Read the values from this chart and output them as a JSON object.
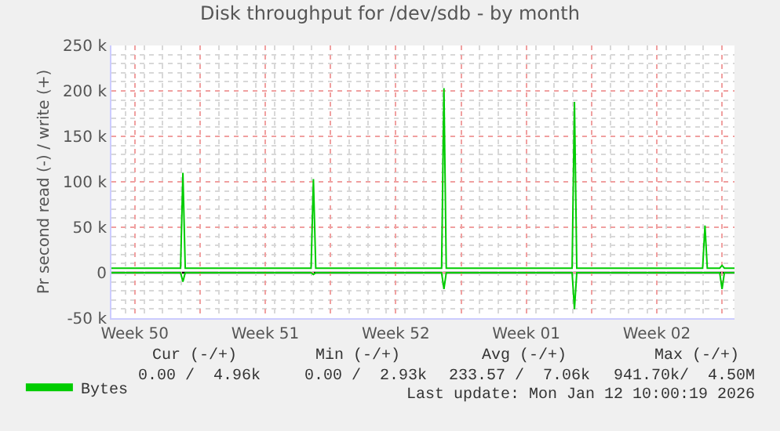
{
  "chart_data": {
    "type": "line",
    "title": "Disk throughput for /dev/sdb - by month",
    "ylabel": "Pr second read (-) / write (+)",
    "xlim": [
      "2025-12-10T06:00",
      "2026-01-12T16:00"
    ],
    "ylim": [
      -50000,
      250000
    ],
    "xticks": [
      {
        "value": "2025-12-11T12:00",
        "label": "Week 50"
      },
      {
        "value": "2025-12-18T12:00",
        "label": "Week 51"
      },
      {
        "value": "2025-12-25T12:00",
        "label": "Week 52"
      },
      {
        "value": "2026-01-01T12:00",
        "label": "Week 01"
      },
      {
        "value": "2026-01-08T12:00",
        "label": "Week 02"
      },
      {
        "value": "2025-12-15",
        "label": null
      },
      {
        "value": "2025-12-22",
        "label": null
      },
      {
        "value": "2025-12-29",
        "label": null
      },
      {
        "value": "2026-01-05",
        "label": null
      },
      {
        "value": "2026-01-12",
        "label": null
      }
    ],
    "yticks": [
      {
        "value": -50000,
        "label": "-50 k"
      },
      {
        "value": 0,
        "label": "0"
      },
      {
        "value": 50000,
        "label": "50 k"
      },
      {
        "value": 100000,
        "label": "100 k"
      },
      {
        "value": 150000,
        "label": "150 k"
      },
      {
        "value": 200000,
        "label": "200 k"
      },
      {
        "value": 250000,
        "label": "250 k"
      }
    ],
    "grid": true,
    "legend": "bottom left",
    "series": [
      {
        "name": "Bytes",
        "color": "#00cc00",
        "x": [
          "2025-12-10T06:00",
          "2025-12-13T23:00",
          "2025-12-14T02:00",
          "2025-12-14T05:00",
          "2025-12-20T23:00",
          "2025-12-21T02:00",
          "2025-12-21T05:00",
          "2025-12-27T23:00",
          "2025-12-28T02:00",
          "2025-12-28T05:00",
          "2026-01-03T23:00",
          "2026-01-04T02:00",
          "2026-01-04T05:00",
          "2026-01-10T23:00",
          "2026-01-11T02:00",
          "2026-01-11T05:00",
          "2026-01-11T21:00",
          "2026-01-12T00:00",
          "2026-01-12T03:00",
          "2026-01-12T16:00"
        ],
        "values": [
          5000,
          5000,
          110000,
          5000,
          5000,
          103000,
          5000,
          5000,
          203000,
          5000,
          5000,
          188000,
          5000,
          5000,
          52000,
          5000,
          5000,
          8000,
          5000,
          5000
        ]
      },
      {
        "color": "#00cc00",
        "x": [
          "2025-12-10T06:00",
          "2025-12-13T23:00",
          "2025-12-14T02:00",
          "2025-12-14T05:00",
          "2025-12-20T23:00",
          "2025-12-21T02:00",
          "2025-12-21T05:00",
          "2025-12-27T23:00",
          "2025-12-28T02:00",
          "2025-12-28T05:00",
          "2026-01-03T23:00",
          "2026-01-04T02:00",
          "2026-01-04T05:00",
          "2026-01-11T21:00",
          "2026-01-12T00:00",
          "2026-01-12T03:00",
          "2026-01-12T16:00"
        ],
        "values": [
          0,
          0,
          -10000,
          0,
          0,
          -2000,
          0,
          0,
          -18000,
          0,
          0,
          -40000,
          0,
          0,
          -18000,
          0,
          0
        ]
      }
    ],
    "ref_lines": [
      {
        "axis": "y",
        "value": 0,
        "color": "#000000"
      }
    ],
    "annotations": [
      "Cur (-/+)",
      "Min (-/+)",
      "Avg (-/+)",
      "Max (-/+)",
      "0.00 /  4.96k",
      "0.00 /  2.93k",
      "233.57 /  7.06k",
      "941.70k/  4.50M",
      "Last update: Mon Jan 12 10:00:19 2026"
    ]
  }
}
